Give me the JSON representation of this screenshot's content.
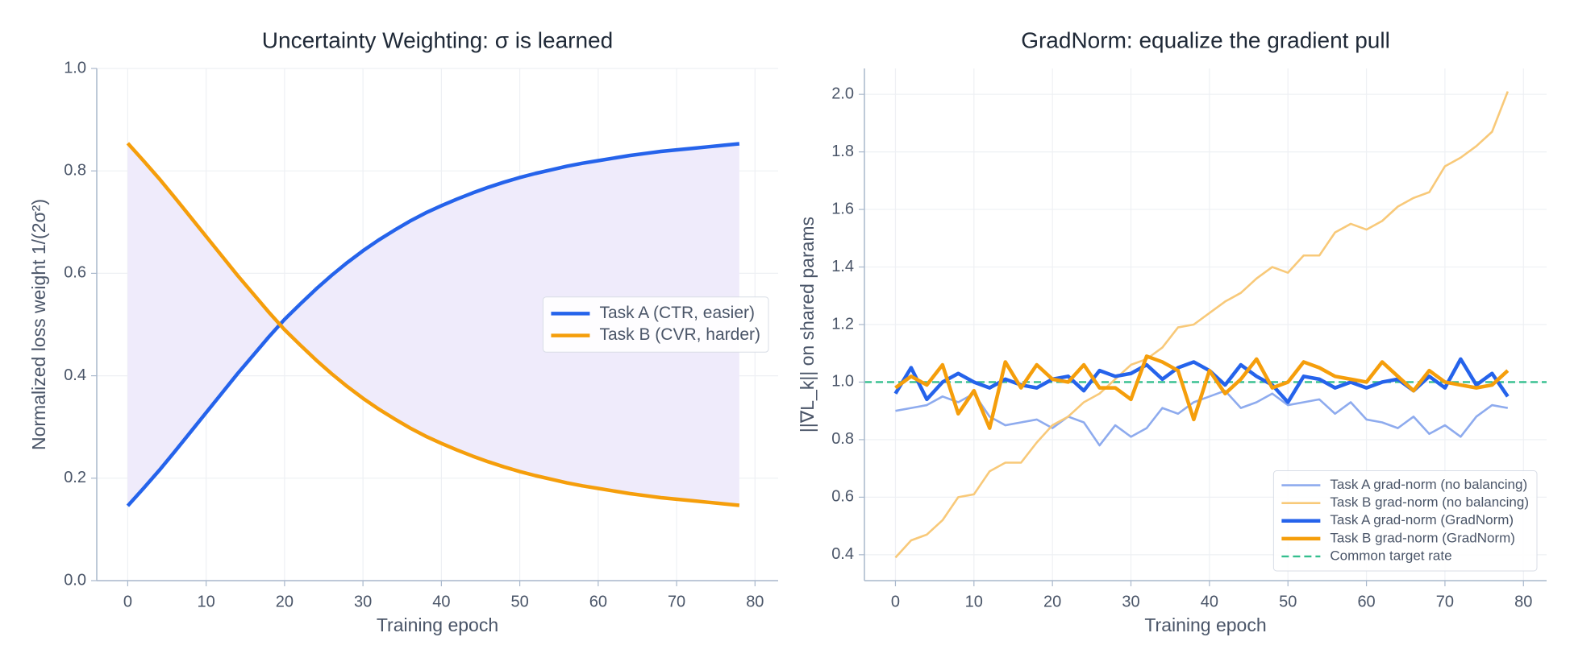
{
  "chart_data": [
    {
      "type": "line",
      "title": "Uncertainty Weighting: σ is learned",
      "xlabel": "Training epoch",
      "ylabel": "Normalized loss weight  1/(2σ²)",
      "x": [
        0,
        2,
        4,
        6,
        8,
        10,
        12,
        14,
        16,
        18,
        20,
        22,
        24,
        26,
        28,
        30,
        32,
        34,
        36,
        38,
        40,
        42,
        44,
        46,
        48,
        50,
        52,
        54,
        56,
        58,
        60,
        62,
        64,
        66,
        68,
        70,
        72,
        74,
        76,
        78
      ],
      "series": [
        {
          "name": "Task A (CTR, easier)",
          "color": "#2563eb",
          "values": [
            0.146,
            0.18,
            0.215,
            0.252,
            0.29,
            0.328,
            0.366,
            0.404,
            0.44,
            0.476,
            0.51,
            0.54,
            0.569,
            0.596,
            0.621,
            0.644,
            0.665,
            0.684,
            0.702,
            0.718,
            0.732,
            0.745,
            0.757,
            0.768,
            0.778,
            0.787,
            0.795,
            0.802,
            0.809,
            0.815,
            0.82,
            0.825,
            0.83,
            0.834,
            0.838,
            0.841,
            0.844,
            0.847,
            0.85,
            0.853
          ]
        },
        {
          "name": "Task B (CVR, harder)",
          "color": "#f59e0b",
          "values": [
            0.854,
            0.82,
            0.785,
            0.748,
            0.71,
            0.672,
            0.634,
            0.596,
            0.56,
            0.524,
            0.49,
            0.46,
            0.431,
            0.404,
            0.379,
            0.356,
            0.335,
            0.316,
            0.298,
            0.282,
            0.268,
            0.255,
            0.243,
            0.232,
            0.222,
            0.213,
            0.205,
            0.198,
            0.191,
            0.185,
            0.18,
            0.175,
            0.17,
            0.166,
            0.162,
            0.159,
            0.156,
            0.153,
            0.15,
            0.147
          ]
        }
      ],
      "fill_between": {
        "series": [
          0,
          1
        ],
        "color": "#efebfb"
      },
      "xlim": [
        -3.95,
        82.95
      ],
      "xticks": [
        0,
        10,
        20,
        30,
        40,
        50,
        60,
        70,
        80
      ],
      "ylim": [
        0,
        1
      ],
      "yticks": [
        {
          "value": 0,
          "label": "0.0"
        },
        0.2,
        0.4,
        0.6,
        0.8,
        {
          "value": 1,
          "label": "1.0"
        }
      ],
      "grid": true,
      "legend": "center right"
    },
    {
      "type": "line",
      "title": "GradNorm: equalize the gradient pull",
      "xlabel": "Training epoch",
      "ylabel": "||∇L_k|| on shared params",
      "x": [
        0,
        2,
        4,
        6,
        8,
        10,
        12,
        14,
        16,
        18,
        20,
        22,
        24,
        26,
        28,
        30,
        32,
        34,
        36,
        38,
        40,
        42,
        44,
        46,
        48,
        50,
        52,
        54,
        56,
        58,
        60,
        62,
        64,
        66,
        68,
        70,
        72,
        74,
        76,
        78
      ],
      "series": [
        {
          "name": "Task A grad-norm (no balancing)",
          "color": "#8eabee",
          "values": [
            0.9,
            0.91,
            0.92,
            0.95,
            0.93,
            0.96,
            0.88,
            0.85,
            0.86,
            0.87,
            0.84,
            0.88,
            0.86,
            0.78,
            0.85,
            0.81,
            0.84,
            0.91,
            0.89,
            0.93,
            0.95,
            0.97,
            0.91,
            0.93,
            0.96,
            0.92,
            0.93,
            0.94,
            0.89,
            0.93,
            0.87,
            0.86,
            0.84,
            0.88,
            0.82,
            0.85,
            0.81,
            0.88,
            0.92,
            0.91
          ]
        },
        {
          "name": "Task B grad-norm (no balancing)",
          "color": "#f8c979",
          "values": [
            0.39,
            0.45,
            0.47,
            0.52,
            0.6,
            0.61,
            0.69,
            0.72,
            0.72,
            0.79,
            0.85,
            0.88,
            0.93,
            0.96,
            1.01,
            1.06,
            1.08,
            1.12,
            1.19,
            1.2,
            1.24,
            1.28,
            1.31,
            1.36,
            1.4,
            1.38,
            1.44,
            1.44,
            1.52,
            1.55,
            1.53,
            1.56,
            1.61,
            1.64,
            1.66,
            1.75,
            1.78,
            1.82,
            1.87,
            2.01
          ]
        },
        {
          "name": "Task A grad-norm (GradNorm)",
          "color": "#2563eb",
          "values": [
            0.96,
            1.05,
            0.94,
            1.0,
            1.03,
            1.0,
            0.98,
            1.01,
            0.99,
            0.98,
            1.01,
            1.02,
            0.97,
            1.04,
            1.02,
            1.03,
            1.06,
            1.01,
            1.05,
            1.07,
            1.04,
            0.99,
            1.06,
            1.02,
            0.99,
            0.93,
            1.02,
            1.01,
            0.98,
            1.0,
            0.98,
            1.0,
            1.01,
            0.97,
            1.02,
            0.98,
            1.08,
            0.99,
            1.03,
            0.95
          ]
        },
        {
          "name": "Task B grad-norm (GradNorm)",
          "color": "#f59e0b",
          "values": [
            0.98,
            1.02,
            0.99,
            1.06,
            0.89,
            0.97,
            0.84,
            1.07,
            0.98,
            1.06,
            1.01,
            1.0,
            1.06,
            0.98,
            0.98,
            0.94,
            1.09,
            1.07,
            1.04,
            0.87,
            1.04,
            0.96,
            1.01,
            1.08,
            0.98,
            1.0,
            1.07,
            1.05,
            1.02,
            1.01,
            1.0,
            1.07,
            1.02,
            0.97,
            1.04,
            1.0,
            0.99,
            0.98,
            0.99,
            1.04
          ]
        }
      ],
      "reference_lines": [
        {
          "name": "Common target rate",
          "value": 1.0,
          "color": "#34bf8e",
          "linestyle": "dashed"
        }
      ],
      "xlim": [
        -3.95,
        82.95
      ],
      "xticks": [
        0,
        10,
        20,
        30,
        40,
        50,
        60,
        70,
        80
      ],
      "ylim": [
        0.31,
        2.09
      ],
      "yticks": [
        0.4,
        0.6,
        0.8,
        {
          "value": 1,
          "label": "1.0"
        },
        1.2,
        1.4,
        1.6,
        1.8,
        {
          "value": 2,
          "label": "2.0"
        }
      ],
      "grid": true,
      "legend": "lower right"
    }
  ]
}
